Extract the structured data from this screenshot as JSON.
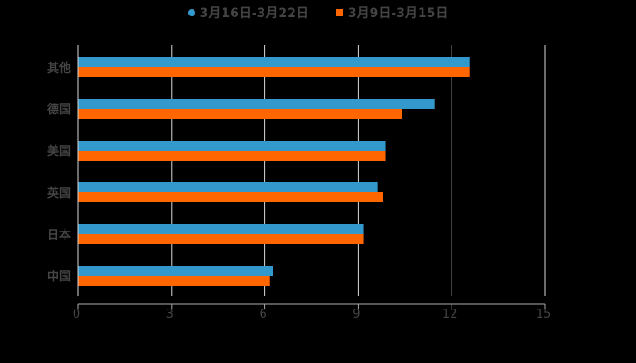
{
  "legend": [
    {
      "label": "3月16日-3月22日",
      "color": "#3399CC",
      "marker": "circle"
    },
    {
      "label": "3月9日-3月15日",
      "color": "#FF6600",
      "marker": "square"
    }
  ],
  "chart_data": {
    "type": "bar",
    "orientation": "horizontal",
    "title": "",
    "xlabel": "",
    "ylabel": "",
    "categories": [
      "其他",
      "德国",
      "美国",
      "英国",
      "日本",
      "中国"
    ],
    "series": [
      {
        "name": "3月16日-3月22日",
        "color": "#3399CC",
        "values": [
          12.57,
          11.46,
          9.88,
          9.62,
          9.18,
          6.27
        ]
      },
      {
        "name": "3月9日-3月15日",
        "color": "#FF6600",
        "values": [
          12.57,
          10.41,
          9.88,
          9.8,
          9.18,
          6.15
        ]
      }
    ],
    "xlim": [
      0,
      15
    ],
    "xticks": [
      "0",
      "3",
      "6",
      "9",
      "12",
      "15"
    ],
    "grid": true,
    "legend_position": "top"
  }
}
